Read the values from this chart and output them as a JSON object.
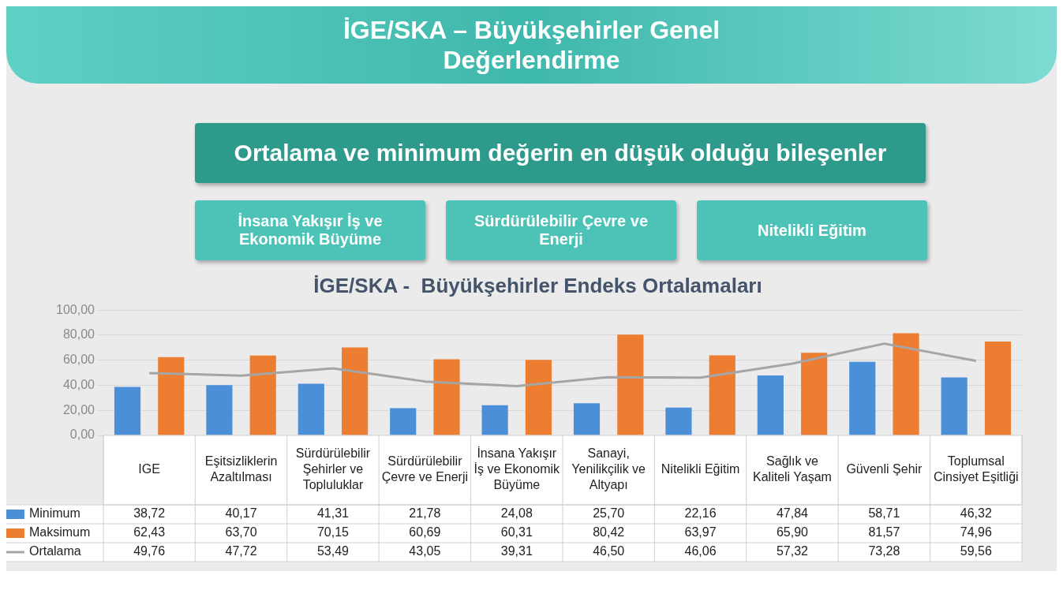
{
  "chart_data": {
    "type": "bar",
    "title": "İGE/SKA -  Büyükşehirler Endeks Ortalamaları",
    "subtitle": "İGE/SKA – Büyükşehirler Genel Değerlendirme",
    "annotations": [
      "Ortalama ve minimum değerin en düşük olduğu bileşenler",
      "İnsana Yakışır İş ve Ekonomik Büyüme",
      "Sürdürülebilir Çevre ve Enerji",
      "Nitelikli Eğitim"
    ],
    "categories": [
      "IGE",
      "Eşitsizliklerin Azaltılması",
      "Sürdürülebilir Şehirler ve Topluluklar",
      "Sürdürülebilir Çevre ve Enerji",
      "İnsana Yakışır İş ve Ekonomik Büyüme",
      "Sanayi, Yenilikçilik ve Altyapı",
      "Nitelikli Eğitim",
      "Sağlık ve Kaliteli Yaşam",
      "Güvenli Şehir",
      "Toplumsal Cinsiyet Eşitliği"
    ],
    "series": [
      {
        "name": "Minimum",
        "color": "#4a8fd8",
        "values": [
          38.72,
          40.17,
          41.31,
          21.78,
          24.08,
          25.7,
          22.16,
          47.84,
          58.71,
          46.32
        ],
        "value_labels": [
          "38,72",
          "40,17",
          "41,31",
          "21,78",
          "24,08",
          "25,70",
          "22,16",
          "47,84",
          "58,71",
          "46,32"
        ]
      },
      {
        "name": "Maksimum",
        "color": "#ed7d31",
        "values": [
          62.43,
          63.7,
          70.15,
          60.69,
          60.31,
          80.42,
          63.97,
          65.9,
          81.57,
          74.96
        ],
        "value_labels": [
          "62,43",
          "63,70",
          "70,15",
          "60,69",
          "60,31",
          "80,42",
          "63,97",
          "65,90",
          "81,57",
          "74,96"
        ]
      },
      {
        "name": "Ortalama",
        "type": "line",
        "color": "#a5a5a5",
        "marker": "none",
        "values": [
          49.76,
          47.72,
          53.49,
          43.05,
          39.31,
          46.5,
          46.06,
          57.32,
          73.28,
          59.56
        ],
        "value_labels": [
          "49,76",
          "47,72",
          "53,49",
          "43,05",
          "39,31",
          "46,50",
          "46,06",
          "57,32",
          "73,28",
          "59,56"
        ]
      }
    ],
    "ylim": [
      0,
      100
    ],
    "yticks": [
      {
        "value": 0,
        "label": "0,00"
      },
      {
        "value": 20,
        "label": "20,00"
      },
      {
        "value": 40,
        "label": "40,00"
      },
      {
        "value": 60,
        "label": "60,00"
      },
      {
        "value": 80,
        "label": "80,00"
      },
      {
        "value": 100,
        "label": "100,00"
      }
    ],
    "grid": "y",
    "legend": "bottom"
  }
}
